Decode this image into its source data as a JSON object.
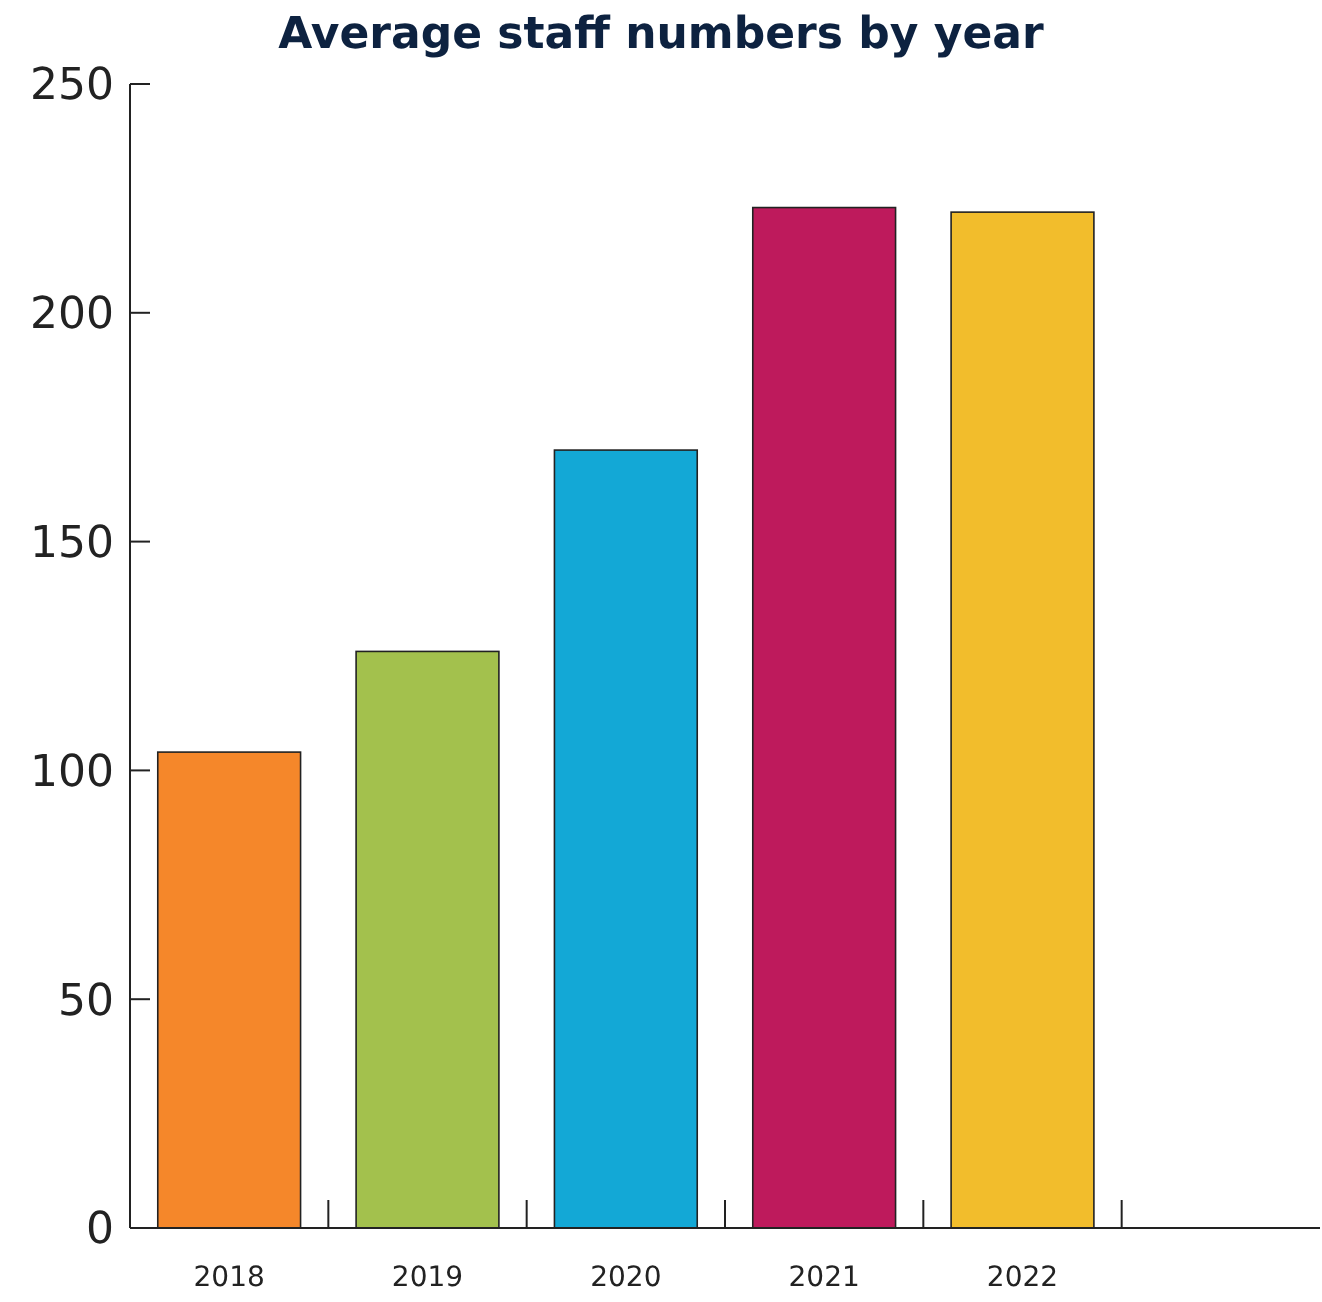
{
  "chart_data": {
    "type": "bar",
    "title": "Average staff numbers by year",
    "categories": [
      "2018",
      "2019",
      "2020",
      "2021",
      "2022",
      null
    ],
    "values": [
      104,
      126,
      170,
      223,
      222,
      null
    ],
    "colors": [
      "#f5872a",
      "#a3c14d",
      "#13a8d6",
      "#be1a5c",
      "#f2bd2c",
      null
    ],
    "ylim": [
      0,
      250
    ],
    "yticks": [
      0,
      50,
      100,
      150,
      200,
      250
    ],
    "grid": false
  }
}
